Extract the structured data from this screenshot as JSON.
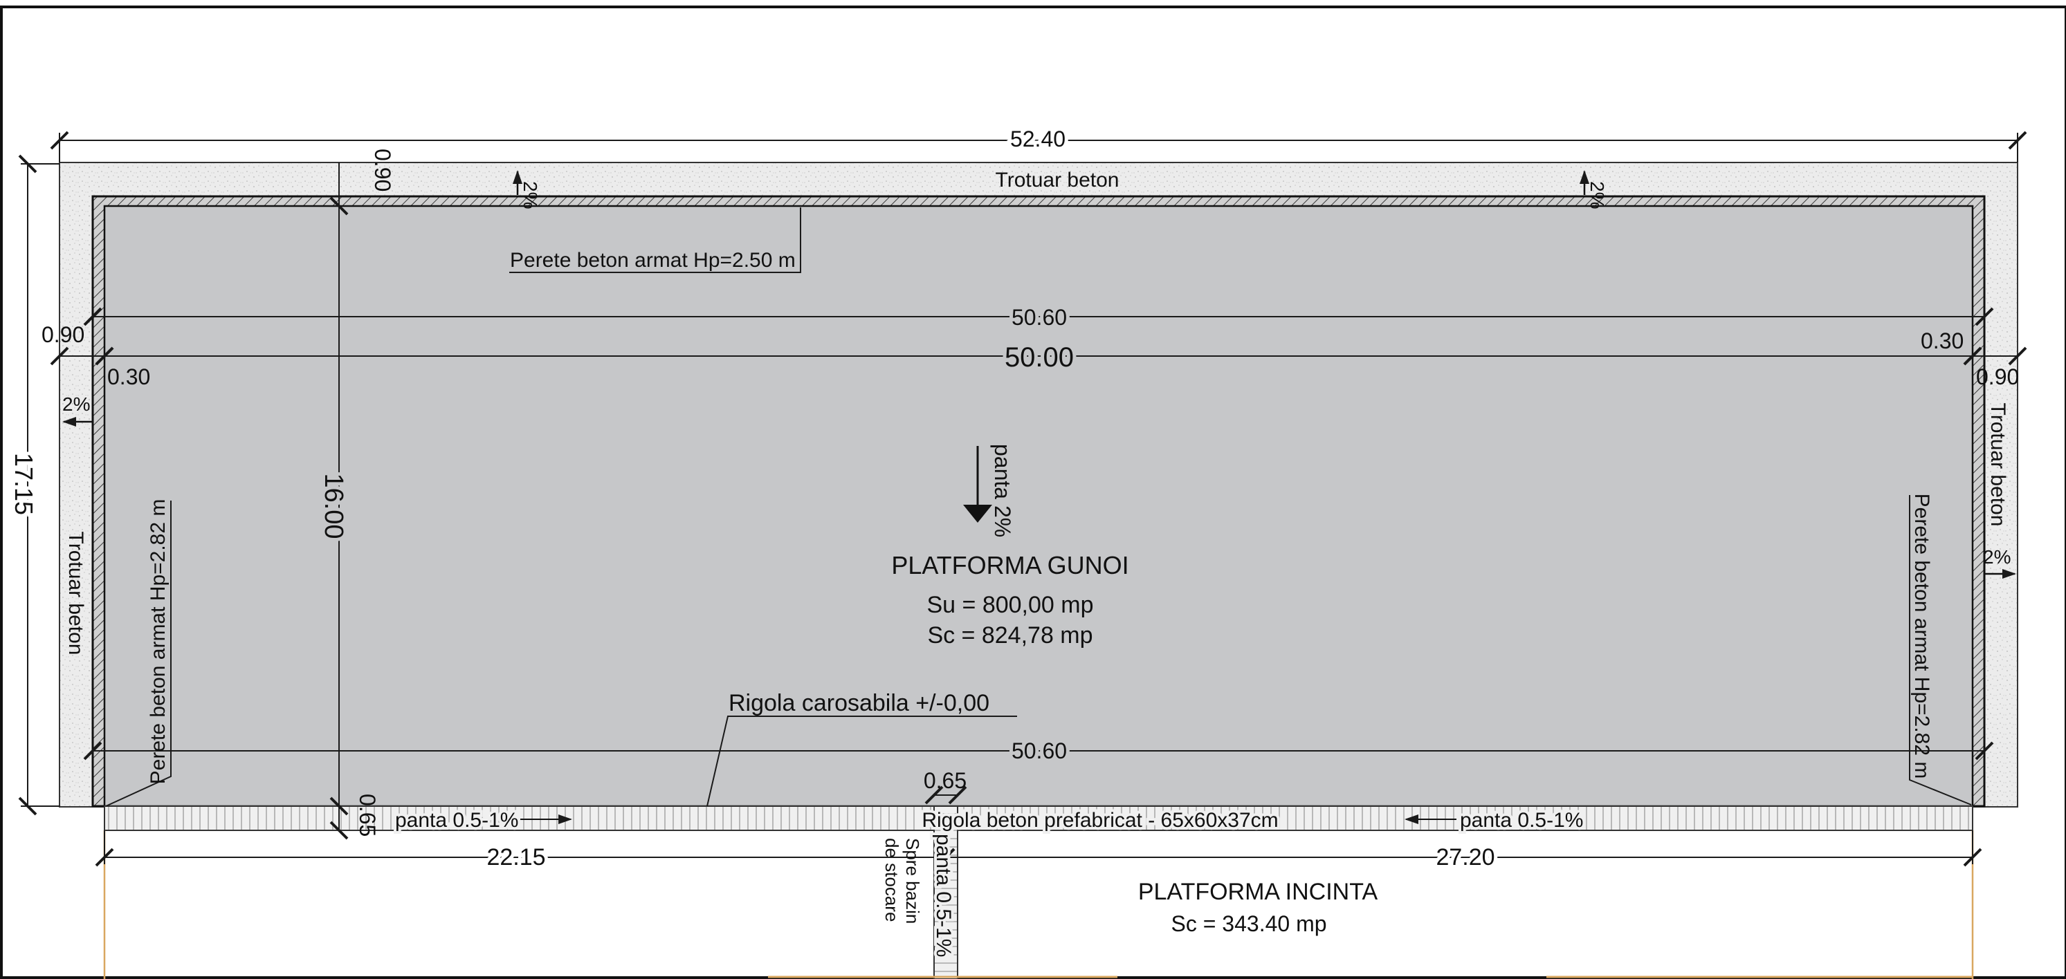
{
  "dimensions": {
    "overall_width": "52.40",
    "overall_height": "17.15",
    "inner_height": "16.00",
    "wall_outer_width_top": "50.60",
    "wall_outer_width_bottom": "50.60",
    "inner_width": "50.00",
    "sidewalk_top": "0.90",
    "sidewalk_left": "0.90",
    "sidewalk_right": "0.90",
    "wall_left": "0.30",
    "wall_right": "0.30",
    "gutter_width": "0.65",
    "gutter_depth": "0.65",
    "left_segment": "22.15",
    "right_segment": "27.20"
  },
  "labels": {
    "sidewalk_top": "Trotuar beton",
    "sidewalk_left": "Trotuar beton",
    "sidewalk_right": "Trotuar beton",
    "wall_top": "Perete beton armat Hp=2.50 m",
    "wall_left": "Perete beton armat Hp=2.82 m",
    "wall_right": "Perete beton armat Hp=2.82 m",
    "slope_main": "panta 2%",
    "platform_title": "PLATFORMA GUNOI",
    "platform_su": "Su = 800,00 mp",
    "platform_sc": "Sc = 824,78 mp",
    "rigola_carosabila": "Rigola carosabila +/-0,00",
    "rigola_prefab": "Rigola beton prefabricat - 65x60x37cm",
    "slope_gutter_left": "panta 0.5-1%",
    "slope_gutter_right": "panta 0.5-1%",
    "slope_pipe": "panta 0.5-1%",
    "to_storage_line1": "Spre bazin",
    "to_storage_line2": "de stocare",
    "incinta_title": "PLATFORMA INCINTA",
    "incinta_sc": "Sc = 343.40 mp"
  },
  "slopes": {
    "top_left": "2%",
    "top_right": "2%",
    "left": "2%",
    "right": "2%"
  },
  "colors": {
    "platform_fill": "#c6c7c9",
    "sidewalk_fill": "#ececec",
    "gutter_fill": "#efefef",
    "line": "#1a1a1a",
    "boundary_orange": "#d9a760"
  }
}
